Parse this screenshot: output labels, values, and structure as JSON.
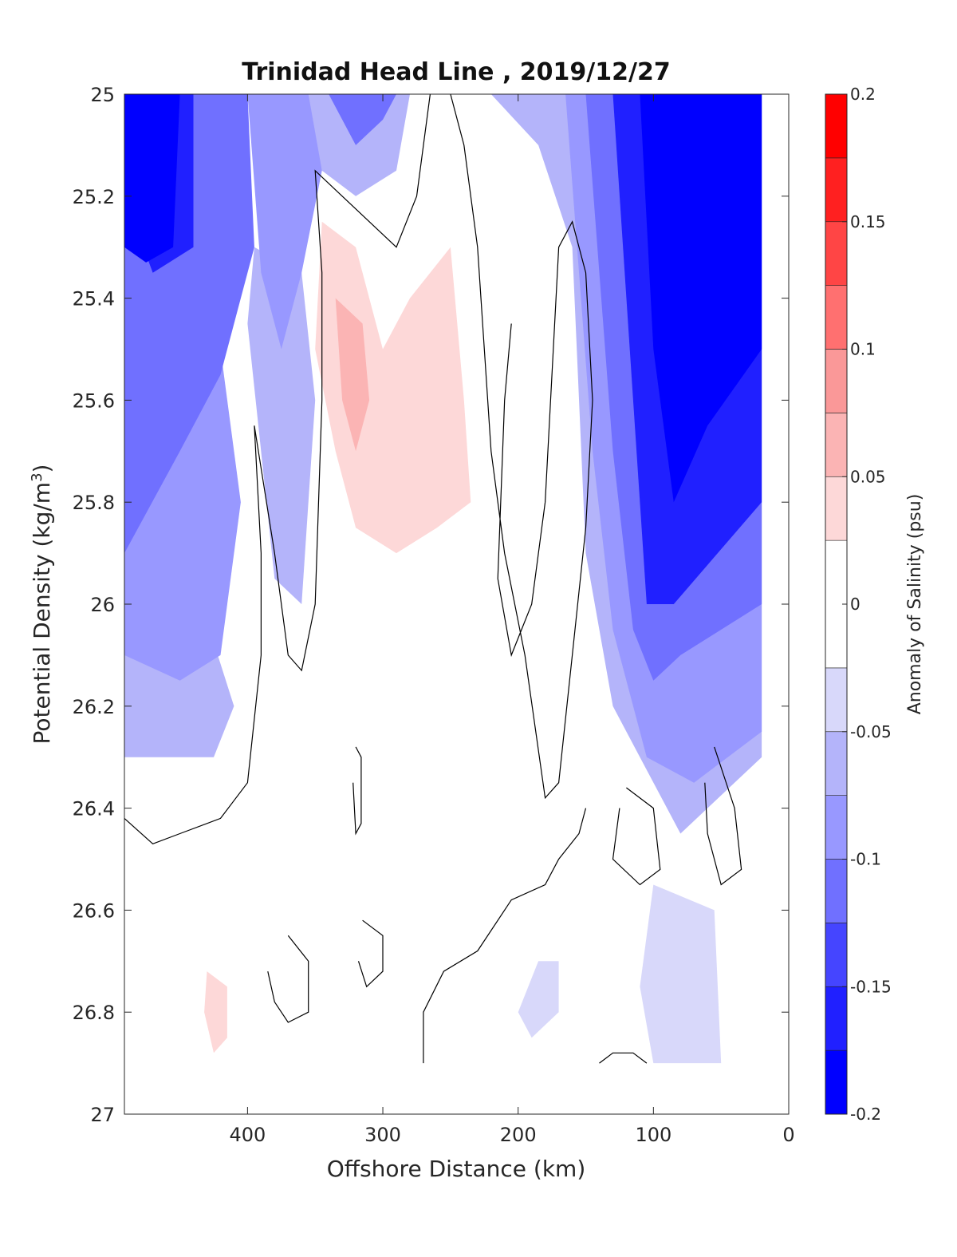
{
  "chart_data": {
    "type": "contour",
    "title": "Trinidad Head Line , 2019/12/27",
    "xlabel": "Offshore Distance (km)",
    "ylabel": "Potential Density (kg/m",
    "ylabel_sup": "3",
    "ylabel_close": ")",
    "xlim": [
      491,
      0
    ],
    "x_reversed": true,
    "ylim": [
      25,
      27
    ],
    "y_reversed": true,
    "xticks": [
      400,
      300,
      200,
      100,
      0
    ],
    "xtick_labels": [
      "400",
      "300",
      "200",
      "100",
      "0"
    ],
    "yticks": [
      25,
      25.2,
      25.4,
      25.6,
      25.8,
      26,
      26.2,
      26.4,
      26.6,
      26.8,
      27
    ],
    "ytick_labels": [
      "25",
      "25.2",
      "25.4",
      "25.6",
      "25.8",
      "26",
      "26.2",
      "26.4",
      "26.6",
      "26.8",
      "27"
    ],
    "colorbar": {
      "label": "Anomaly of Salinity (psu)",
      "lim": [
        -0.2,
        0.2
      ],
      "ticks": [
        -0.2,
        -0.15,
        -0.1,
        -0.05,
        0,
        0.05,
        0.1,
        0.15,
        0.2
      ],
      "tick_labels": [
        "-0.2",
        "-0.15",
        "-0.1",
        "-0.05",
        "0",
        "0.05",
        "0.1",
        "0.15",
        "0.2"
      ],
      "levels": [
        -0.2,
        -0.175,
        -0.15,
        -0.125,
        -0.1,
        -0.075,
        -0.05,
        -0.025,
        0.025,
        0.05,
        0.075,
        0.1,
        0.125,
        0.15,
        0.175,
        0.2
      ],
      "colors": [
        "#0000ff",
        "#2020ff",
        "#4545ff",
        "#7070ff",
        "#9898ff",
        "#b4b4fa",
        "#d8d8fa",
        "#ffffff",
        "#fdd8d8",
        "#fbb4b4",
        "#fa9898",
        "#ff7070",
        "#ff4545",
        "#ff2020",
        "#ff0000"
      ]
    },
    "fill_background_color": "#ffffff",
    "data_coverage": {
      "ymax_valid": 26.9
    },
    "regions": [
      {
        "name": "negative-band-x480-400",
        "value": -0.15,
        "points": [
          [
            491,
            25
          ],
          [
            440,
            25
          ],
          [
            440,
            25.3
          ],
          [
            470,
            25.35
          ],
          [
            491,
            25.2
          ]
        ]
      },
      {
        "name": "offshore-negative-mid",
        "value": -0.1,
        "points": [
          [
            491,
            25
          ],
          [
            400,
            25
          ],
          [
            395,
            25.3
          ],
          [
            420,
            25.55
          ],
          [
            450,
            25.7
          ],
          [
            491,
            25.9
          ]
        ]
      },
      {
        "name": "offshore-negative-light",
        "value": -0.075,
        "points": [
          [
            491,
            25.4
          ],
          [
            420,
            25.5
          ],
          [
            405,
            25.8
          ],
          [
            420,
            26.1
          ],
          [
            450,
            26.15
          ],
          [
            491,
            26.1
          ]
        ]
      },
      {
        "name": "offshore-negative-faint",
        "value": -0.05,
        "points": [
          [
            491,
            25.9
          ],
          [
            440,
            25.95
          ],
          [
            410,
            26.2
          ],
          [
            425,
            26.3
          ],
          [
            460,
            26.3
          ],
          [
            491,
            26.3
          ]
        ]
      },
      {
        "name": "offshore-negative-strong",
        "value": -0.175,
        "points": [
          [
            491,
            25
          ],
          [
            450,
            25
          ],
          [
            455,
            25.3
          ],
          [
            475,
            25.33
          ],
          [
            491,
            25.3
          ]
        ]
      },
      {
        "name": "band-x380-negative",
        "value": -0.075,
        "points": [
          [
            400,
            25
          ],
          [
            355,
            25
          ],
          [
            345,
            25.15
          ],
          [
            360,
            25.35
          ],
          [
            375,
            25.5
          ],
          [
            390,
            25.35
          ]
        ]
      },
      {
        "name": "band-x380-faint",
        "value": -0.05,
        "points": [
          [
            395,
            25.3
          ],
          [
            360,
            25.35
          ],
          [
            350,
            25.6
          ],
          [
            360,
            26
          ],
          [
            380,
            25.95
          ],
          [
            400,
            25.45
          ]
        ]
      },
      {
        "name": "nearshore-deep",
        "value": -0.175,
        "points": [
          [
            110,
            25
          ],
          [
            20,
            25
          ],
          [
            20,
            25.5
          ],
          [
            60,
            25.65
          ],
          [
            85,
            25.8
          ],
          [
            100,
            25.5
          ]
        ]
      },
      {
        "name": "nearshore-core",
        "value": -0.2,
        "points": [
          [
            90,
            25.15
          ],
          [
            70,
            25.15
          ],
          [
            60,
            25.35
          ],
          [
            70,
            25.45
          ],
          [
            85,
            25.35
          ]
        ]
      },
      {
        "name": "nearshore-mid",
        "value": -0.15,
        "points": [
          [
            130,
            25
          ],
          [
            20,
            25
          ],
          [
            20,
            25.8
          ],
          [
            85,
            26.0
          ],
          [
            105,
            26.0
          ],
          [
            115,
            25.6
          ]
        ]
      },
      {
        "name": "nearshore-light",
        "value": -0.1,
        "points": [
          [
            150,
            25
          ],
          [
            20,
            25
          ],
          [
            20,
            26.0
          ],
          [
            80,
            26.1
          ],
          [
            100,
            26.15
          ],
          [
            115,
            26.05
          ],
          [
            130,
            25.7
          ]
        ]
      },
      {
        "name": "nearshore-faint",
        "value": -0.075,
        "points": [
          [
            165,
            25
          ],
          [
            20,
            25
          ],
          [
            20,
            26.25
          ],
          [
            70,
            26.35
          ],
          [
            105,
            26.3
          ],
          [
            130,
            26.05
          ],
          [
            145,
            25.7
          ]
        ]
      },
      {
        "name": "nearshore-very-faint",
        "value": -0.05,
        "points": [
          [
            220,
            25
          ],
          [
            20,
            25
          ],
          [
            20,
            26.3
          ],
          [
            80,
            26.45
          ],
          [
            110,
            26.3
          ],
          [
            130,
            26.2
          ],
          [
            150,
            25.9
          ],
          [
            160,
            25.3
          ],
          [
            185,
            25.1
          ]
        ]
      },
      {
        "name": "top-center-negative",
        "value": -0.1,
        "points": [
          [
            340,
            25
          ],
          [
            290,
            25
          ],
          [
            300,
            25.05
          ],
          [
            320,
            25.1
          ]
        ]
      },
      {
        "name": "top-center-faint",
        "value": -0.05,
        "points": [
          [
            360,
            25
          ],
          [
            280,
            25
          ],
          [
            290,
            25.15
          ],
          [
            320,
            25.2
          ],
          [
            345,
            25.15
          ]
        ]
      },
      {
        "name": "main-positive-faint",
        "value": 0.025,
        "points": [
          [
            350,
            25.2
          ],
          [
            320,
            25.15
          ],
          [
            280,
            25.2
          ],
          [
            245,
            25.15
          ],
          [
            200,
            25.2
          ],
          [
            220,
            25.6
          ],
          [
            215,
            25.8
          ],
          [
            200,
            26.3
          ],
          [
            210,
            26.4
          ],
          [
            210,
            26.5
          ],
          [
            240,
            26.55
          ],
          [
            270,
            26.5
          ],
          [
            300,
            26.15
          ],
          [
            330,
            25.95
          ],
          [
            350,
            25.7
          ],
          [
            355,
            25.4
          ]
        ]
      },
      {
        "name": "main-positive-mid",
        "value": 0.05,
        "points": [
          [
            345,
            25.25
          ],
          [
            320,
            25.3
          ],
          [
            300,
            25.5
          ],
          [
            280,
            25.4
          ],
          [
            250,
            25.3
          ],
          [
            240,
            25.6
          ],
          [
            235,
            25.8
          ],
          [
            260,
            25.85
          ],
          [
            290,
            25.9
          ],
          [
            320,
            25.85
          ],
          [
            335,
            25.7
          ],
          [
            350,
            25.5
          ]
        ]
      },
      {
        "name": "main-positive-core",
        "value": 0.075,
        "points": [
          [
            335,
            25.4
          ],
          [
            315,
            25.45
          ],
          [
            310,
            25.6
          ],
          [
            320,
            25.7
          ],
          [
            330,
            25.6
          ]
        ]
      },
      {
        "name": "band-x160-positive",
        "value": 0.025,
        "points": [
          [
            160,
            25.3
          ],
          [
            145,
            25.35
          ],
          [
            140,
            25.6
          ],
          [
            150,
            25.85
          ],
          [
            165,
            25.8
          ],
          [
            170,
            25.5
          ]
        ]
      },
      {
        "name": "deep-positive-a",
        "value": 0.025,
        "points": [
          [
            370,
            26.3
          ],
          [
            350,
            26.35
          ],
          [
            345,
            26.5
          ],
          [
            360,
            26.55
          ],
          [
            375,
            26.45
          ]
        ]
      },
      {
        "name": "deep-positive-b",
        "value": 0.025,
        "points": [
          [
            460,
            26.7
          ],
          [
            430,
            26.55
          ],
          [
            400,
            26.7
          ],
          [
            395,
            26.9
          ],
          [
            491,
            26.9
          ],
          [
            475,
            26.8
          ]
        ]
      },
      {
        "name": "deep-positive-core",
        "value": 0.05,
        "points": [
          [
            430,
            26.72
          ],
          [
            415,
            26.75
          ],
          [
            415,
            26.85
          ],
          [
            425,
            26.88
          ],
          [
            432,
            26.8
          ]
        ]
      },
      {
        "name": "deep-negative-a",
        "value": -0.025,
        "points": [
          [
            185,
            26.7
          ],
          [
            170,
            26.7
          ],
          [
            170,
            26.8
          ],
          [
            190,
            26.85
          ],
          [
            200,
            26.8
          ]
        ]
      },
      {
        "name": "deep-negative-b",
        "value": -0.025,
        "points": [
          [
            100,
            26.55
          ],
          [
            55,
            26.6
          ],
          [
            50,
            26.9
          ],
          [
            100,
            26.9
          ],
          [
            110,
            26.75
          ]
        ]
      }
    ],
    "zero_contours": [
      {
        "name": "zero-contour-offshore",
        "points": [
          [
            491,
            26.42
          ],
          [
            470,
            26.47
          ],
          [
            450,
            26.45
          ],
          [
            420,
            26.42
          ],
          [
            400,
            26.35
          ],
          [
            390,
            26.1
          ],
          [
            390,
            25.9
          ],
          [
            395,
            25.65
          ],
          [
            380,
            25.9
          ],
          [
            370,
            26.1
          ],
          [
            360,
            26.13
          ],
          [
            350,
            26.0
          ],
          [
            345,
            25.6
          ],
          [
            345,
            25.35
          ],
          [
            350,
            25.15
          ],
          [
            330,
            25.2
          ],
          [
            310,
            25.25
          ],
          [
            290,
            25.3
          ],
          [
            275,
            25.2
          ],
          [
            265,
            25.0
          ]
        ]
      },
      {
        "name": "zero-contour-center",
        "points": [
          [
            250,
            25.0
          ],
          [
            240,
            25.1
          ],
          [
            230,
            25.3
          ],
          [
            225,
            25.5
          ],
          [
            220,
            25.7
          ],
          [
            210,
            25.9
          ],
          [
            195,
            26.1
          ],
          [
            180,
            26.38
          ],
          [
            170,
            26.35
          ],
          [
            160,
            26.1
          ],
          [
            150,
            25.85
          ],
          [
            145,
            25.6
          ],
          [
            150,
            25.35
          ],
          [
            160,
            25.25
          ],
          [
            170,
            25.3
          ],
          [
            180,
            25.8
          ],
          [
            190,
            26.0
          ],
          [
            205,
            26.1
          ],
          [
            215,
            25.95
          ],
          [
            210,
            25.6
          ],
          [
            205,
            25.45
          ]
        ]
      },
      {
        "name": "zero-contour-deep-line",
        "points": [
          [
            270,
            26.9
          ],
          [
            270,
            26.8
          ],
          [
            255,
            26.72
          ],
          [
            230,
            26.68
          ],
          [
            205,
            26.58
          ],
          [
            180,
            26.55
          ],
          [
            170,
            26.5
          ],
          [
            155,
            26.45
          ],
          [
            150,
            26.4
          ]
        ]
      },
      {
        "name": "zero-contour-loop-a",
        "points": [
          [
            370,
            26.65
          ],
          [
            355,
            26.7
          ],
          [
            355,
            26.8
          ],
          [
            370,
            26.82
          ],
          [
            380,
            26.78
          ],
          [
            385,
            26.72
          ]
        ]
      },
      {
        "name": "zero-contour-loop-b",
        "points": [
          [
            315,
            26.62
          ],
          [
            300,
            26.65
          ],
          [
            300,
            26.72
          ],
          [
            312,
            26.75
          ],
          [
            318,
            26.7
          ]
        ]
      },
      {
        "name": "zero-contour-loop-c",
        "points": [
          [
            320,
            26.28
          ],
          [
            316,
            26.3
          ],
          [
            316,
            26.43
          ],
          [
            320,
            26.45
          ],
          [
            322,
            26.35
          ]
        ]
      },
      {
        "name": "zero-contour-loop-d",
        "points": [
          [
            120,
            26.36
          ],
          [
            100,
            26.4
          ],
          [
            95,
            26.52
          ],
          [
            110,
            26.55
          ],
          [
            130,
            26.5
          ],
          [
            125,
            26.4
          ]
        ]
      },
      {
        "name": "zero-contour-loop-e",
        "points": [
          [
            55,
            26.28
          ],
          [
            40,
            26.4
          ],
          [
            35,
            26.52
          ],
          [
            50,
            26.55
          ],
          [
            60,
            26.45
          ],
          [
            62,
            26.35
          ]
        ]
      },
      {
        "name": "zero-contour-bottom-arc",
        "points": [
          [
            140,
            26.9
          ],
          [
            130,
            26.88
          ],
          [
            115,
            26.88
          ],
          [
            105,
            26.9
          ]
        ]
      }
    ]
  }
}
